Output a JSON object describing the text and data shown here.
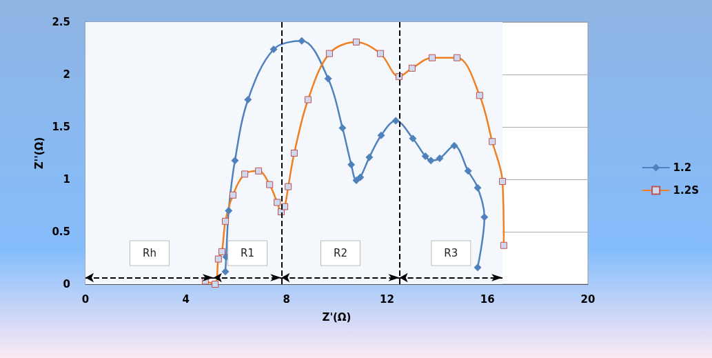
{
  "chart_data": {
    "type": "line",
    "xlabel": "Z'(Ω)",
    "ylabel": "Z''(Ω)",
    "xlim": [
      0,
      20
    ],
    "xticks": [
      0,
      4,
      8,
      12,
      16,
      20
    ],
    "ylim": [
      0,
      2.5
    ],
    "yticks": [
      0,
      0.5,
      1,
      1.5,
      2,
      2.5
    ],
    "grid": "y",
    "legend": "right",
    "line_style": "solid",
    "series": [
      {
        "name": "1.2",
        "color": "#4f81bd",
        "marker": "diamond",
        "x": [
          5.57,
          5.6,
          5.7,
          5.95,
          6.47,
          7.49,
          8.61,
          9.66,
          10.23,
          10.58,
          10.78,
          10.94,
          11.3,
          11.77,
          12.35,
          13.03,
          13.53,
          13.75,
          14.1,
          14.68,
          15.23,
          15.61,
          15.88,
          15.61
        ],
        "values": [
          0.12,
          0.26,
          0.7,
          1.18,
          1.76,
          2.24,
          2.32,
          1.96,
          1.49,
          1.14,
          0.99,
          1.02,
          1.21,
          1.42,
          1.56,
          1.39,
          1.22,
          1.18,
          1.2,
          1.32,
          1.08,
          0.92,
          0.64,
          0.16
        ]
      },
      {
        "name": "1.2S",
        "color": "#f07f22",
        "marker": "square",
        "x": [
          4.77,
          5.16,
          5.29,
          5.43,
          5.57,
          5.87,
          6.34,
          6.89,
          7.33,
          7.63,
          7.79,
          7.93,
          8.07,
          8.31,
          8.86,
          9.71,
          10.78,
          11.74,
          12.48,
          13.0,
          13.8,
          14.79,
          15.69,
          16.19,
          16.6,
          16.65
        ],
        "values": [
          0.03,
          0.0,
          0.24,
          0.31,
          0.6,
          0.85,
          1.05,
          1.08,
          0.95,
          0.78,
          0.69,
          0.74,
          0.93,
          1.25,
          1.76,
          2.2,
          2.31,
          2.2,
          1.98,
          2.06,
          2.16,
          2.16,
          1.8,
          1.36,
          0.98,
          0.37
        ]
      }
    ],
    "ref_lines": [
      {
        "axis": "x",
        "value": 7.8,
        "color": "#000000",
        "line_style": "dashed"
      },
      {
        "axis": "x",
        "value": 12.5,
        "color": "#000000",
        "line_style": "dashed"
      }
    ],
    "bands": [
      {
        "axis": "x",
        "from": 0,
        "to": 5.1,
        "label": "Rh",
        "color": "#f4f7fb"
      },
      {
        "axis": "x",
        "from": 5.1,
        "to": 7.8,
        "label": "R1",
        "color": "#f4f7fb"
      },
      {
        "axis": "x",
        "from": 7.8,
        "to": 12.5,
        "label": "R2",
        "color": "#f4f7fb"
      },
      {
        "axis": "x",
        "from": 12.5,
        "to": 16.6,
        "label": "R3",
        "color": "#f4f7fb"
      }
    ]
  }
}
